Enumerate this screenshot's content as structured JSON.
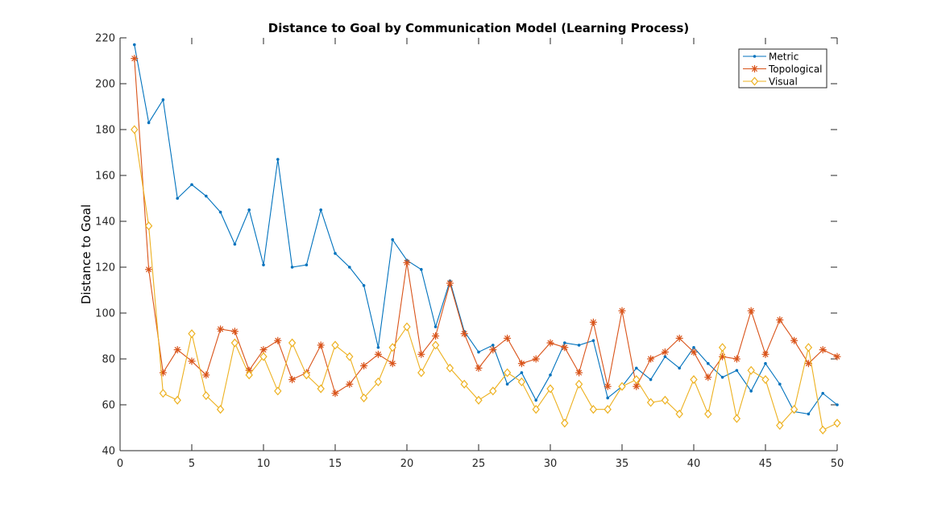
{
  "chart_data": {
    "type": "line",
    "title": "Distance to Goal by Communication Model (Learning Process)",
    "xlabel": "",
    "ylabel": "Distance to Goal",
    "xlim": [
      0,
      50
    ],
    "ylim": [
      40,
      220
    ],
    "xticks": [
      0,
      5,
      10,
      15,
      20,
      25,
      30,
      35,
      40,
      45,
      50
    ],
    "yticks": [
      40,
      60,
      80,
      100,
      120,
      140,
      160,
      180,
      200,
      220
    ],
    "grid": false,
    "legend_position": "top-right",
    "x": [
      1,
      2,
      3,
      4,
      5,
      6,
      7,
      8,
      9,
      10,
      11,
      12,
      13,
      14,
      15,
      16,
      17,
      18,
      19,
      20,
      21,
      22,
      23,
      24,
      25,
      26,
      27,
      28,
      29,
      30,
      31,
      32,
      33,
      34,
      35,
      36,
      37,
      38,
      39,
      40,
      41,
      42,
      43,
      44,
      45,
      46,
      47,
      48,
      49,
      50
    ],
    "series": [
      {
        "name": "Metric",
        "color": "#0072BD",
        "marker": "dot",
        "values": [
          217,
          183,
          193,
          150,
          156,
          151,
          144,
          130,
          145,
          121,
          167,
          120,
          121,
          145,
          126,
          120,
          112,
          85,
          132,
          123,
          119,
          94,
          114,
          92,
          83,
          86,
          69,
          74,
          62,
          73,
          87,
          86,
          88,
          63,
          68,
          76,
          71,
          81,
          76,
          85,
          78,
          72,
          75,
          66,
          78,
          69,
          57,
          56,
          65,
          60
        ]
      },
      {
        "name": "Topological",
        "color": "#D95319",
        "marker": "asterisk",
        "values": [
          211,
          119,
          74,
          84,
          79,
          73,
          93,
          92,
          75,
          84,
          88,
          71,
          74,
          86,
          65,
          69,
          77,
          82,
          78,
          122,
          82,
          90,
          113,
          91,
          76,
          84,
          89,
          78,
          80,
          87,
          85,
          74,
          96,
          68,
          101,
          68,
          80,
          83,
          89,
          83,
          72,
          81,
          80,
          101,
          82,
          97,
          88,
          78,
          84,
          81
        ]
      },
      {
        "name": "Visual",
        "color": "#EDB120",
        "marker": "diamond",
        "values": [
          180,
          138,
          65,
          62,
          91,
          64,
          58,
          87,
          73,
          81,
          66,
          87,
          73,
          67,
          86,
          81,
          63,
          70,
          85,
          94,
          74,
          86,
          76,
          69,
          62,
          66,
          74,
          70,
          58,
          67,
          52,
          69,
          58,
          58,
          68,
          71,
          61,
          62,
          56,
          71,
          56,
          85,
          54,
          75,
          71,
          51,
          58,
          85,
          49,
          52
        ]
      }
    ]
  }
}
